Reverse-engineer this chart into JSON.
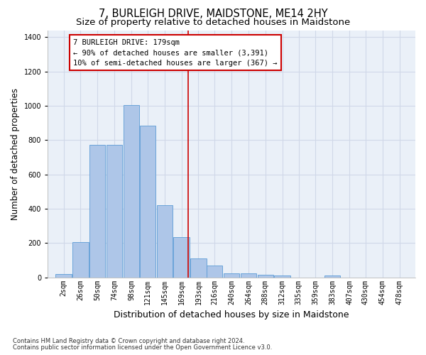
{
  "title": "7, BURLEIGH DRIVE, MAIDSTONE, ME14 2HY",
  "subtitle": "Size of property relative to detached houses in Maidstone",
  "xlabel": "Distribution of detached houses by size in Maidstone",
  "ylabel": "Number of detached properties",
  "footnote1": "Contains HM Land Registry data © Crown copyright and database right 2024.",
  "footnote2": "Contains public sector information licensed under the Open Government Licence v3.0.",
  "bar_centers": [
    2,
    26,
    50,
    74,
    98,
    121,
    145,
    169,
    193,
    216,
    240,
    264,
    288,
    312,
    335,
    359,
    383,
    407,
    430,
    454,
    478
  ],
  "bar_heights": [
    20,
    205,
    770,
    770,
    1005,
    885,
    420,
    235,
    110,
    70,
    25,
    22,
    15,
    10,
    0,
    0,
    12,
    0,
    0,
    0,
    0
  ],
  "bar_color": "#aec6e8",
  "bar_edgecolor": "#5b9bd5",
  "grid_color": "#d0d8e8",
  "background_color": "#eaf0f8",
  "vline_x": 179,
  "vline_color": "#cc0000",
  "annotation_line1": "7 BURLEIGH DRIVE: 179sqm",
  "annotation_line2": "← 90% of detached houses are smaller (3,391)",
  "annotation_line3": "10% of semi-detached houses are larger (367) →",
  "annotation_box_color": "#cc0000",
  "ylim": [
    0,
    1440
  ],
  "yticks": [
    0,
    200,
    400,
    600,
    800,
    1000,
    1200,
    1400
  ],
  "xtick_labels": [
    "2sqm",
    "26sqm",
    "50sqm",
    "74sqm",
    "98sqm",
    "121sqm",
    "145sqm",
    "169sqm",
    "193sqm",
    "216sqm",
    "240sqm",
    "264sqm",
    "288sqm",
    "312sqm",
    "335sqm",
    "359sqm",
    "383sqm",
    "407sqm",
    "430sqm",
    "454sqm",
    "478sqm"
  ],
  "title_fontsize": 10.5,
  "subtitle_fontsize": 9.5,
  "xlabel_fontsize": 9,
  "ylabel_fontsize": 8.5,
  "tick_fontsize": 7,
  "annotation_fontsize": 7.5,
  "footnote_fontsize": 6
}
